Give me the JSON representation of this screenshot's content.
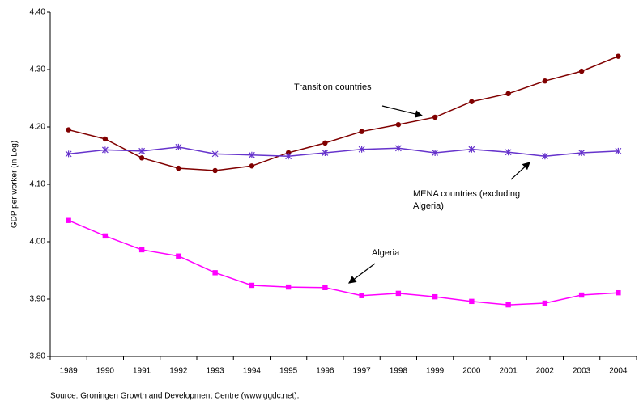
{
  "chart_data": {
    "type": "line",
    "y_label": "GDP per worker (in Log)",
    "source": "Source: Groningen Growth and Development Centre (www.ggdc.net).",
    "categories": [
      "1989",
      "1990",
      "1991",
      "1992",
      "1993",
      "1994",
      "1995",
      "1996",
      "1997",
      "1998",
      "1999",
      "2000",
      "2001",
      "2002",
      "2003",
      "2004"
    ],
    "ylim": [
      3.8,
      4.4
    ],
    "yticks": [
      {
        "value": 3.8,
        "label": "3.80"
      },
      {
        "value": 3.9,
        "label": "3.90"
      },
      {
        "value": 4.0,
        "label": "4.00"
      },
      {
        "value": 4.1,
        "label": "4.10"
      },
      {
        "value": 4.2,
        "label": "4.20"
      },
      {
        "value": 4.3,
        "label": "4.30"
      },
      {
        "value": 4.4,
        "label": "4.40"
      }
    ],
    "grid": false,
    "series": [
      {
        "name": "Transition countries",
        "color": "#800000",
        "marker": "circle",
        "values": [
          4.195,
          4.179,
          4.146,
          4.128,
          4.124,
          4.132,
          4.155,
          4.172,
          4.192,
          4.204,
          4.217,
          4.244,
          4.258,
          4.28,
          4.297,
          4.323
        ]
      },
      {
        "name": "MENA countries (excluding Algeria)",
        "color": "#6633cc",
        "marker": "star",
        "values": [
          4.153,
          4.16,
          4.158,
          4.165,
          4.153,
          4.151,
          4.149,
          4.155,
          4.161,
          4.163,
          4.155,
          4.161,
          4.156,
          4.149,
          4.155,
          4.158
        ]
      },
      {
        "name": "Algeria",
        "color": "#ff00ff",
        "marker": "square",
        "values": [
          4.037,
          4.01,
          3.986,
          3.975,
          3.946,
          3.924,
          3.921,
          3.92,
          3.906,
          3.91,
          3.904,
          3.896,
          3.89,
          3.893,
          3.907,
          3.911
        ]
      }
    ],
    "annotations": [
      {
        "lines": [
          "Transition countries"
        ]
      },
      {
        "lines": [
          "MENA countries (excluding",
          "Algeria)"
        ]
      },
      {
        "lines": [
          "Algeria"
        ]
      }
    ]
  }
}
